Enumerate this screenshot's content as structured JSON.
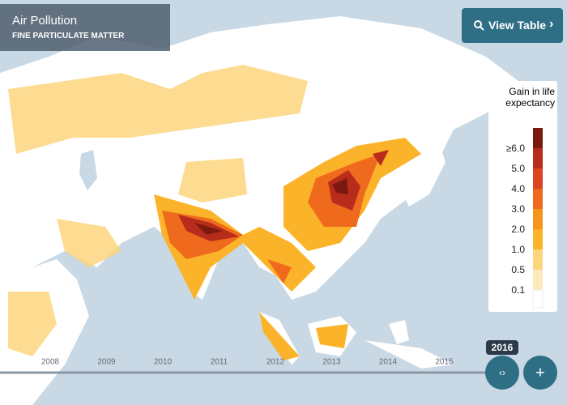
{
  "header": {
    "title": "Air Pollution",
    "subtitle": "FINE PARTICULATE MATTER"
  },
  "button": {
    "label": "View Table"
  },
  "legend": {
    "title": "Gain in life expectancy",
    "items": [
      {
        "label": "≥6.0",
        "color": "#7a1a0f"
      },
      {
        "label": "5.0",
        "color": "#b82c1c"
      },
      {
        "label": "4.0",
        "color": "#dd4420"
      },
      {
        "label": "3.0",
        "color": "#ef6a1c"
      },
      {
        "label": "2.0",
        "color": "#f7941b"
      },
      {
        "label": "1.0",
        "color": "#fbb429"
      },
      {
        "label": "0.5",
        "color": "#fdd57c"
      },
      {
        "label": "0.1",
        "color": "#fde9bd"
      }
    ]
  },
  "timeline": {
    "years": [
      "2008",
      "2009",
      "2010",
      "2011",
      "2012",
      "2013",
      "2014",
      "2015"
    ],
    "current": "2016"
  }
}
